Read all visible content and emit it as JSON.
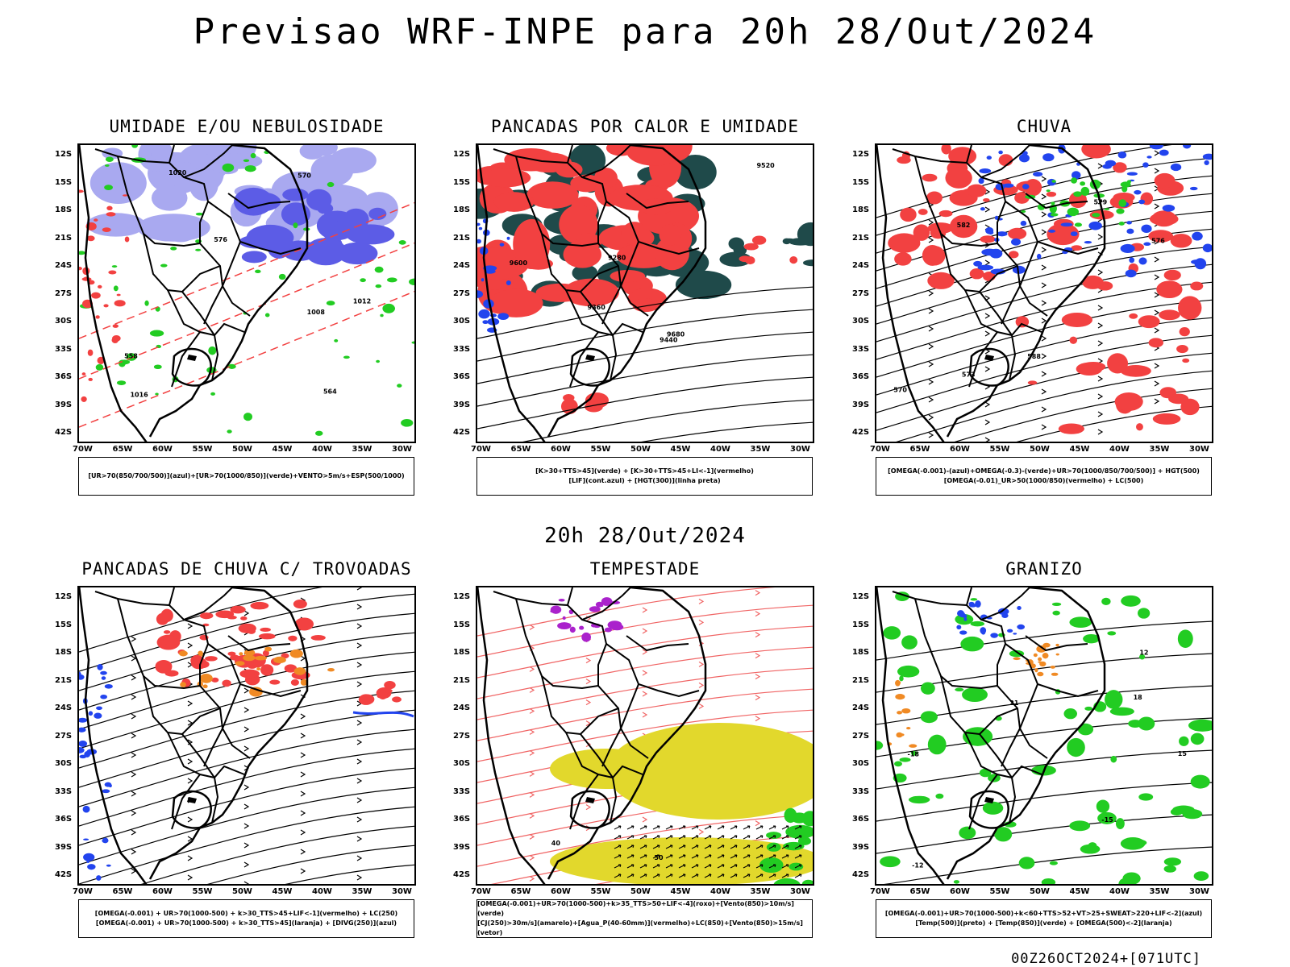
{
  "page": {
    "title": "Previsao WRF-INPE  para 20h 28/Out/2024",
    "mid_date": "20h 28/Out/2024",
    "footer": "00Z26OCT2024+[071UTC]"
  },
  "axes": {
    "lat_labels": [
      "12S",
      "15S",
      "18S",
      "21S",
      "24S",
      "27S",
      "30S",
      "33S",
      "36S",
      "39S",
      "42S"
    ],
    "lon_labels": [
      "70W",
      "65W",
      "60W",
      "55W",
      "50W",
      "45W",
      "40W",
      "35W",
      "30W"
    ]
  },
  "panels": [
    {
      "id": "umidade",
      "title": "UMIDADE E/OU NEBULOSIDADE",
      "legend": [
        "[UR>70(850/700/500)](azul)+[UR>70(1000/850)](verde)+VENTO>5m/s+ESP(500/1000)"
      ],
      "contour_labels": [
        "1008",
        "1012",
        "1016",
        "1020",
        "576",
        "564",
        "558",
        "570"
      ]
    },
    {
      "id": "pancadas-calor",
      "title": "PANCADAS POR CALOR E UMIDADE",
      "legend": [
        "[K>30+TTS>45](verde) + [K>30+TTS>45+LI<-1](vermelho)",
        "[LIF](cont.azul) + [HGT(300)](linha preta)"
      ],
      "contour_labels": [
        "9680",
        "9600",
        "9520",
        "9440",
        "9360",
        "9280"
      ]
    },
    {
      "id": "chuva",
      "title": "CHUVA",
      "legend": [
        "[OMEGA(-0.001)-(azul)+OMEGA(-0.3)-(verde)+UR>70(1000/850/700/500)] + HGT(500)",
        "[OMEGA(-0.01)_UR>50(1000/850)(vermelho) + LC(500)"
      ],
      "contour_labels": [
        "588",
        "582",
        "579",
        "576",
        "573",
        "570"
      ]
    },
    {
      "id": "pancadas-trovoadas",
      "title": "PANCADAS DE CHUVA C/ TROVOADAS",
      "legend": [
        "[OMEGA(-0.001) + UR>70(1000-500) + k>30_TTS>45+LIF<-1](vermelho) + LC(250)",
        "[OMEGA(-0.001) + UR>70(1000-500) + k>30_TTS>45](laranja) + [DIVG(250)](azul)"
      ],
      "contour_labels": []
    },
    {
      "id": "tempestade",
      "title": "TEMPESTADE",
      "legend": [
        "[OMEGA(-0.001)+UR>70(1000-500)+k>35_TTS>50+LIF<-4](roxo)+[Vento(850)>10m/s](verde)",
        "[CJ(250)>30m/s](amarelo)+[Agua_P(40-60mm)](vermelho)+LC(850)+[Vento(850)>15m/s](vetor)"
      ],
      "contour_labels": [
        "40",
        "50"
      ]
    },
    {
      "id": "granizo",
      "title": "GRANIZO",
      "legend": [
        "[OMEGA(-0.001)+UR>70(1000-500)+k<60+TTS>52+VT>25+SWEAT>220+LIF<-2](azul)",
        "[Temp(500)](preto) + [Temp(850)](verde) + [OMEGA(500)<-2](laranja)"
      ],
      "contour_labels": [
        "-12",
        "-15",
        "-18",
        "12",
        "15",
        "18",
        "21"
      ]
    }
  ],
  "colors": {
    "humid_purple": "#a9a9f0",
    "humid_blue": "#5c5ce6",
    "green": "#22cc22",
    "red": "#f24141",
    "dark_teal": "#1f4a4a",
    "blue": "#2244ee",
    "orange": "#f08a24",
    "yellow": "#e2d82c",
    "purple": "#aa22cc",
    "salmon": "#f06464"
  }
}
